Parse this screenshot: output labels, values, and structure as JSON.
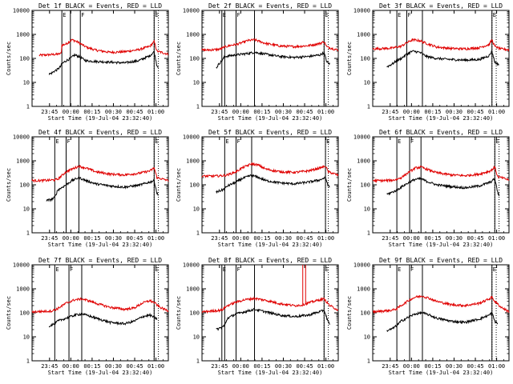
{
  "figure": {
    "series_legend": {
      "black": "Events",
      "red": "LLD"
    },
    "y_tick_labels": [
      "1",
      "10",
      "100",
      "1000",
      "10000"
    ],
    "x_tick_labels": [
      "23:45",
      "00:00",
      "00:15",
      "00:30",
      "00:45",
      "01:00"
    ],
    "colors": {
      "events": "#000000",
      "lld": "#e00000",
      "axes": "#000000"
    }
  },
  "chart_data": [
    {
      "type": "line",
      "title": "Det 1f BLACK = Events, RED = LLD",
      "xlabel": "Start Time (19-Jul-04 23:32:40)",
      "ylabel": "Counts/sec",
      "yscale": "log",
      "ylim": [
        1,
        10000
      ],
      "xlim_minutes_from_start": [
        0,
        96
      ],
      "x_ticks_minutes": [
        12.3,
        27.3,
        42.3,
        57.3,
        72.3,
        87.3
      ],
      "state_markers": [
        {
          "t": 21,
          "label": "E"
        },
        {
          "t": 34,
          "label": "F"
        },
        {
          "t": 86,
          "label": "E"
        }
      ],
      "event_lines_minutes": [
        21,
        27,
        34,
        86
      ],
      "dotted_lines_minutes": [
        86,
        89
      ],
      "series": [
        {
          "name": "LLD",
          "t": [
            5,
            10,
            14,
            18,
            20.5,
            21,
            24,
            28,
            30,
            33,
            38,
            45,
            55,
            65,
            75,
            83,
            86,
            88,
            96
          ],
          "values": [
            135,
            140,
            145,
            150,
            160,
            350,
            400,
            600,
            550,
            450,
            300,
            220,
            180,
            190,
            230,
            320,
            500,
            200,
            150
          ]
        },
        {
          "name": "Events",
          "t": [
            12,
            14,
            16,
            18,
            20,
            21,
            24,
            27,
            30,
            33,
            38,
            45,
            55,
            65,
            75,
            83,
            86,
            88,
            89
          ],
          "values": [
            22,
            25,
            30,
            35,
            45,
            60,
            80,
            100,
            140,
            120,
            80,
            75,
            70,
            65,
            80,
            130,
            190,
            50,
            45
          ]
        }
      ]
    },
    {
      "type": "line",
      "title": "Det 2f BLACK = Events, RED = LLD",
      "xlabel": "Start Time (19-Jul-04 23:32:40)",
      "ylabel": "Counts/sec",
      "yscale": "log",
      "ylim": [
        1,
        10000
      ],
      "xlim_minutes_from_start": [
        0,
        96
      ],
      "x_ticks_minutes": [
        12.3,
        27.3,
        42.3,
        57.3,
        72.3,
        87.3
      ],
      "state_markers": [
        {
          "t": 14,
          "label": "E"
        },
        {
          "t": 24,
          "label": "F"
        },
        {
          "t": 86,
          "label": "E"
        }
      ],
      "event_lines_minutes": [
        14,
        16,
        24,
        37,
        86
      ],
      "dotted_lines_minutes": [
        86,
        89
      ],
      "series": [
        {
          "name": "LLD",
          "t": [
            0,
            8,
            12,
            14,
            16,
            20,
            24,
            28,
            32,
            37,
            45,
            55,
            65,
            75,
            83,
            86,
            88,
            96
          ],
          "values": [
            220,
            230,
            240,
            260,
            300,
            350,
            380,
            450,
            550,
            600,
            420,
            330,
            310,
            340,
            420,
            500,
            300,
            220
          ]
        },
        {
          "name": "Events",
          "t": [
            10,
            12,
            14,
            16,
            20,
            24,
            28,
            32,
            37,
            45,
            55,
            65,
            75,
            83,
            86,
            88,
            90
          ],
          "values": [
            40,
            60,
            80,
            120,
            130,
            140,
            150,
            160,
            180,
            150,
            120,
            110,
            120,
            140,
            170,
            70,
            60
          ]
        }
      ]
    },
    {
      "type": "line",
      "title": "Det 3f BLACK = Events, RED = LLD",
      "xlabel": "Start Time (19-Jul-04 23:32:40)",
      "ylabel": "Counts/sec",
      "yscale": "log",
      "ylim": [
        1,
        10000
      ],
      "xlim_minutes_from_start": [
        0,
        96
      ],
      "x_ticks_minutes": [
        12.3,
        27.3,
        42.3,
        57.3,
        72.3,
        87.3
      ],
      "state_markers": [
        {
          "t": 17,
          "label": "E"
        },
        {
          "t": 24,
          "label": "F"
        },
        {
          "t": 84,
          "label": "E"
        }
      ],
      "event_lines_minutes": [
        17,
        24,
        35,
        84
      ],
      "dotted_lines_minutes": [
        84,
        87
      ],
      "series": [
        {
          "name": "LLD",
          "t": [
            0,
            8,
            14,
            17,
            20,
            24,
            28,
            33,
            38,
            45,
            55,
            65,
            75,
            82,
            84,
            86,
            90,
            96
          ],
          "values": [
            250,
            260,
            270,
            300,
            320,
            450,
            600,
            550,
            420,
            300,
            260,
            250,
            280,
            380,
            600,
            320,
            250,
            230
          ]
        },
        {
          "name": "Events",
          "t": [
            10,
            14,
            17,
            20,
            24,
            28,
            33,
            38,
            45,
            55,
            65,
            75,
            82,
            84,
            86,
            89
          ],
          "values": [
            45,
            60,
            80,
            100,
            150,
            200,
            180,
            120,
            100,
            90,
            85,
            90,
            130,
            200,
            70,
            55
          ]
        }
      ]
    },
    {
      "type": "line",
      "title": "Det 4f BLACK = Events, RED = LLD",
      "xlabel": "Start Time (19-Jul-04 23:32:40)",
      "ylabel": "Counts/sec",
      "yscale": "log",
      "ylim": [
        1,
        10000
      ],
      "xlim_minutes_from_start": [
        0,
        96
      ],
      "x_ticks_minutes": [
        12.3,
        27.3,
        42.3,
        57.3,
        72.3,
        87.3
      ],
      "state_markers": [
        {
          "t": 16,
          "label": "E"
        },
        {
          "t": 24,
          "label": "F"
        },
        {
          "t": 86,
          "label": "E"
        }
      ],
      "event_lines_minutes": [
        16,
        24,
        33,
        86
      ],
      "dotted_lines_minutes": [
        86,
        89
      ],
      "series": [
        {
          "name": "LLD",
          "t": [
            0,
            6,
            12,
            16,
            18,
            24,
            28,
            33,
            38,
            45,
            55,
            65,
            75,
            83,
            86,
            88,
            96
          ],
          "values": [
            150,
            150,
            155,
            160,
            170,
            350,
            450,
            600,
            500,
            350,
            280,
            260,
            300,
            380,
            500,
            200,
            150
          ]
        },
        {
          "name": "Events",
          "t": [
            10,
            14,
            16,
            18,
            24,
            28,
            33,
            38,
            45,
            55,
            65,
            75,
            83,
            86,
            88,
            89
          ],
          "values": [
            22,
            25,
            30,
            60,
            100,
            150,
            200,
            150,
            110,
            90,
            80,
            95,
            130,
            150,
            45,
            35
          ]
        }
      ]
    },
    {
      "type": "line",
      "title": "Det 5f BLACK = Events, RED = LLD",
      "xlabel": "Start Time (19-Jul-04 23:32:40)",
      "ylabel": "Counts/sec",
      "yscale": "log",
      "ylim": [
        1,
        10000
      ],
      "xlim_minutes_from_start": [
        0,
        96
      ],
      "x_ticks_minutes": [
        12.3,
        27.3,
        42.3,
        57.3,
        72.3,
        87.3
      ],
      "state_markers": [
        {
          "t": 16,
          "label": "E"
        },
        {
          "t": 24,
          "label": "F"
        },
        {
          "t": 87,
          "label": "E"
        }
      ],
      "event_lines_minutes": [
        16,
        24,
        35,
        87
      ],
      "dotted_lines_minutes": [
        87,
        89
      ],
      "series": [
        {
          "name": "LLD",
          "t": [
            0,
            8,
            14,
            18,
            24,
            28,
            35,
            40,
            45,
            55,
            65,
            75,
            83,
            87,
            89,
            96
          ],
          "values": [
            230,
            230,
            240,
            260,
            350,
            500,
            750,
            650,
            450,
            350,
            330,
            380,
            500,
            600,
            350,
            250
          ]
        },
        {
          "name": "Events",
          "t": [
            10,
            14,
            16,
            18,
            24,
            28,
            35,
            40,
            45,
            55,
            65,
            75,
            83,
            87,
            89,
            90
          ],
          "values": [
            50,
            60,
            70,
            90,
            130,
            180,
            250,
            200,
            150,
            120,
            110,
            130,
            160,
            200,
            90,
            80
          ]
        }
      ]
    },
    {
      "type": "line",
      "title": "Det 6f BLACK = Events, RED = LLD",
      "xlabel": "Start Time (19-Jul-04 23:32:40)",
      "ylabel": "Counts/sec",
      "yscale": "log",
      "ylim": [
        1,
        10000
      ],
      "xlim_minutes_from_start": [
        0,
        96
      ],
      "x_ticks_minutes": [
        12.3,
        27.3,
        42.3,
        57.3,
        72.3,
        87.3
      ],
      "state_markers": [
        {
          "t": 17,
          "label": "E"
        },
        {
          "t": 26,
          "label": "F"
        },
        {
          "t": 86,
          "label": "E"
        }
      ],
      "event_lines_minutes": [
        17,
        26,
        34,
        86
      ],
      "dotted_lines_minutes": [
        86,
        89
      ],
      "series": [
        {
          "name": "LLD",
          "t": [
            0,
            8,
            14,
            17,
            20,
            26,
            30,
            34,
            38,
            45,
            55,
            65,
            75,
            83,
            86,
            88,
            96
          ],
          "values": [
            150,
            150,
            155,
            170,
            200,
            350,
            500,
            550,
            450,
            320,
            260,
            240,
            280,
            380,
            550,
            220,
            160
          ]
        },
        {
          "name": "Events",
          "t": [
            10,
            14,
            17,
            20,
            26,
            30,
            34,
            38,
            45,
            55,
            65,
            75,
            83,
            86,
            88,
            89
          ],
          "values": [
            40,
            50,
            60,
            80,
            130,
            170,
            180,
            140,
            100,
            85,
            75,
            90,
            130,
            180,
            50,
            35
          ]
        }
      ]
    },
    {
      "type": "line",
      "title": "Det 7f BLACK = Events, RED = LLD",
      "xlabel": "Start Time (19-Jul-04 23:32:40)",
      "ylabel": "Counts/sec",
      "yscale": "log",
      "ylim": [
        1,
        10000
      ],
      "xlim_minutes_from_start": [
        0,
        96
      ],
      "x_ticks_minutes": [
        12.3,
        27.3,
        42.3,
        57.3,
        72.3,
        87.3
      ],
      "state_markers": [
        {
          "t": 16,
          "label": "E"
        },
        {
          "t": 26,
          "label": "F"
        },
        {
          "t": 86,
          "label": "E"
        }
      ],
      "event_lines_minutes": [
        16,
        26,
        35,
        86
      ],
      "dotted_lines_minutes": [
        86,
        89
      ],
      "series": [
        {
          "name": "LLD",
          "t": [
            0,
            8,
            14,
            18,
            24,
            30,
            35,
            40,
            45,
            55,
            65,
            72,
            78,
            83,
            86,
            90,
            96
          ],
          "values": [
            110,
            115,
            120,
            150,
            250,
            350,
            380,
            320,
            250,
            170,
            140,
            160,
            260,
            320,
            270,
            170,
            120
          ]
        },
        {
          "name": "Events",
          "t": [
            12,
            14,
            16,
            18,
            24,
            30,
            35,
            40,
            45,
            55,
            65,
            72,
            78,
            83,
            86,
            88
          ],
          "values": [
            28,
            32,
            35,
            45,
            60,
            80,
            90,
            75,
            60,
            40,
            35,
            45,
            70,
            80,
            65,
            55
          ]
        }
      ]
    },
    {
      "type": "line",
      "title": "Det 8f BLACK = Events, RED = LLD",
      "xlabel": "Start Time (19-Jul-04 23:32:40)",
      "ylabel": "Counts/sec",
      "yscale": "log",
      "ylim": [
        1,
        10000
      ],
      "xlim_minutes_from_start": [
        0,
        96
      ],
      "x_ticks_minutes": [
        12.3,
        27.3,
        42.3,
        57.3,
        72.3,
        87.3
      ],
      "state_markers": [
        {
          "t": 14,
          "label": "E"
        },
        {
          "t": 24,
          "label": "F"
        },
        {
          "t": 86,
          "label": "E"
        }
      ],
      "event_lines_minutes": [
        14,
        16,
        24,
        37,
        86
      ],
      "dotted_lines_minutes": [
        86,
        89
      ],
      "spikes": [
        {
          "t": 71,
          "value": 10000
        },
        {
          "t": 73,
          "value": 10000
        }
      ],
      "series": [
        {
          "name": "LLD",
          "t": [
            0,
            8,
            14,
            18,
            24,
            30,
            37,
            45,
            55,
            65,
            70,
            75,
            83,
            86,
            90,
            96
          ],
          "values": [
            110,
            120,
            130,
            200,
            280,
            350,
            400,
            330,
            240,
            200,
            210,
            260,
            350,
            380,
            200,
            130
          ]
        },
        {
          "name": "Events",
          "t": [
            10,
            14,
            16,
            18,
            24,
            30,
            37,
            45,
            55,
            65,
            75,
            80,
            83,
            86,
            88,
            90
          ],
          "values": [
            20,
            25,
            30,
            60,
            90,
            110,
            140,
            110,
            80,
            70,
            80,
            100,
            110,
            130,
            60,
            30
          ]
        }
      ]
    },
    {
      "type": "line",
      "title": "Det 9f BLACK = Events, RED = LLD",
      "xlabel": "Start Time (19-Jul-04 23:32:40)",
      "ylabel": "Counts/sec",
      "yscale": "log",
      "ylim": [
        1,
        10000
      ],
      "xlim_minutes_from_start": [
        0,
        96
      ],
      "x_ticks_minutes": [
        12.3,
        27.3,
        42.3,
        57.3,
        72.3,
        87.3
      ],
      "state_markers": [
        {
          "t": 17,
          "label": "E"
        },
        {
          "t": 26,
          "label": "F"
        },
        {
          "t": 84,
          "label": "E"
        }
      ],
      "event_lines_minutes": [
        17,
        26,
        35,
        84
      ],
      "dotted_lines_minutes": [
        84,
        87
      ],
      "series": [
        {
          "name": "LLD",
          "t": [
            0,
            8,
            14,
            17,
            20,
            26,
            30,
            35,
            40,
            45,
            55,
            65,
            75,
            82,
            84,
            86,
            90,
            96
          ],
          "values": [
            110,
            120,
            130,
            150,
            200,
            350,
            450,
            500,
            400,
            300,
            220,
            200,
            250,
            380,
            450,
            300,
            180,
            110
          ]
        },
        {
          "name": "Events",
          "t": [
            10,
            14,
            17,
            20,
            26,
            30,
            35,
            40,
            45,
            55,
            65,
            75,
            82,
            84,
            86,
            88
          ],
          "values": [
            18,
            22,
            30,
            45,
            70,
            90,
            100,
            80,
            60,
            45,
            40,
            55,
            80,
            100,
            45,
            35
          ]
        }
      ]
    }
  ]
}
